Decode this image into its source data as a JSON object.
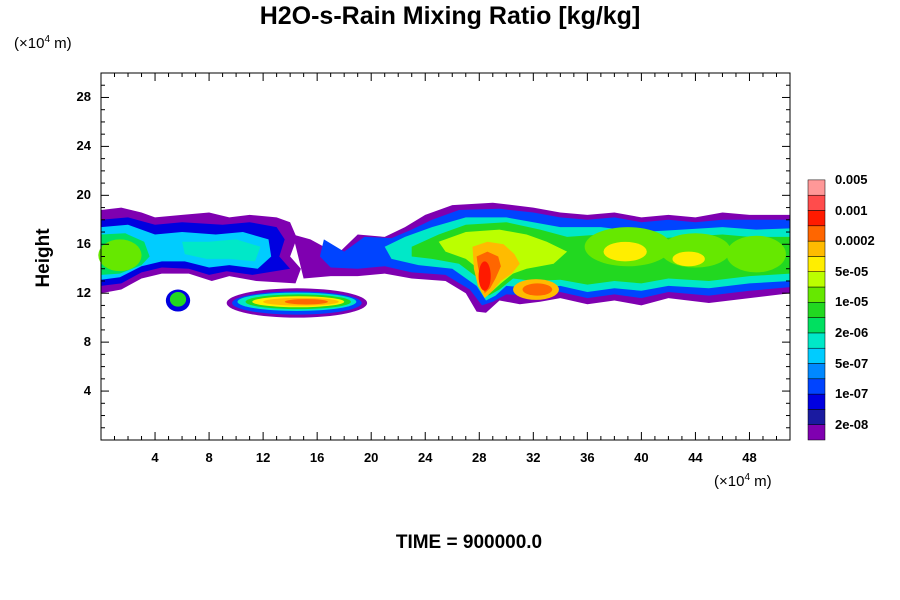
{
  "chart_data": {
    "type": "heatmap",
    "title": "H2O-s-Rain Mixing Ratio [kg/kg]",
    "ylabel": "Height",
    "xlabel": "",
    "x_unit": {
      "prefix": "(×10",
      "exp": "4",
      "suffix": " m)"
    },
    "y_unit": {
      "prefix": "(×10",
      "exp": "4",
      "suffix": " m)"
    },
    "xlim": [
      0,
      51
    ],
    "ylim": [
      0,
      30
    ],
    "x_ticks": [
      "4",
      "8",
      "12",
      "16",
      "20",
      "24",
      "28",
      "32",
      "36",
      "40",
      "44",
      "48"
    ],
    "y_ticks": [
      "4",
      "8",
      "12",
      "16",
      "20",
      "24",
      "28"
    ],
    "colorbar": {
      "colors": [
        "#7f00b0",
        "#1a1aa0",
        "#0000e0",
        "#0044ff",
        "#0088ff",
        "#00ccff",
        "#00e8c8",
        "#00e060",
        "#22d820",
        "#66e800",
        "#bbff00",
        "#ffee00",
        "#ffbb00",
        "#ff6600",
        "#ff1a00",
        "#ff4c4c",
        "#ff9898"
      ],
      "labels": [
        "2e-08",
        "1e-07",
        "5e-07",
        "2e-06",
        "1e-05",
        "5e-05",
        "0.0002",
        "0.001",
        "0.005"
      ]
    },
    "cloud_layers": [
      {
        "x_range": [
          0,
          51
        ],
        "y_range": [
          10.5,
          19
        ],
        "max_level": "1e-05 to 5e-05"
      },
      {
        "x_range": [
          5,
          6.5
        ],
        "y_range": [
          10.5,
          12
        ],
        "max_level": "1e-05"
      },
      {
        "x_range": [
          9,
          20
        ],
        "y_range": [
          10.5,
          12.5
        ],
        "max_level": "0.001"
      },
      {
        "x_range": [
          26.5,
          34
        ],
        "y_range": [
          10.5,
          19
        ],
        "max_level": "0.001"
      }
    ],
    "time_label": "TIME = 900000.0"
  }
}
